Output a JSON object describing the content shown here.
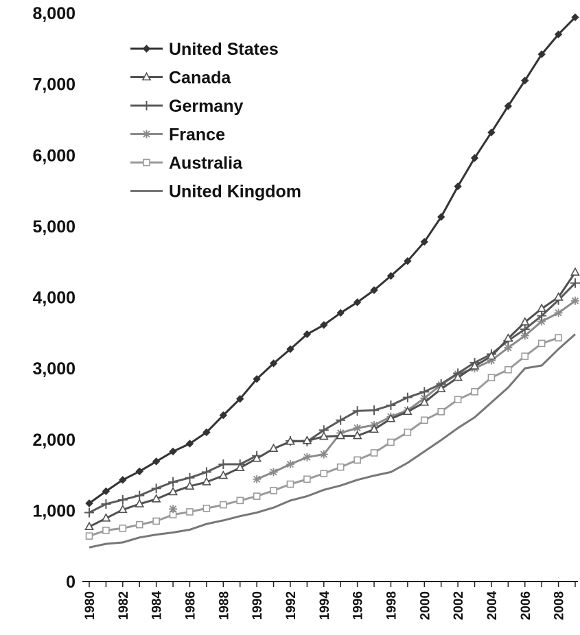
{
  "chart_data": {
    "type": "line",
    "title": "",
    "xlabel": "",
    "ylabel": "",
    "xlim": [
      1980,
      2009
    ],
    "ylim": [
      0,
      8000
    ],
    "grid": false,
    "legend_position": "top-left",
    "y_ticks": [
      {
        "value": 0,
        "label": "0"
      },
      {
        "value": 1000,
        "label": "1,000"
      },
      {
        "value": 2000,
        "label": "2,000"
      },
      {
        "value": 3000,
        "label": "3,000"
      },
      {
        "value": 4000,
        "label": "4,000"
      },
      {
        "value": 5000,
        "label": "5,000"
      },
      {
        "value": 6000,
        "label": "6,000"
      },
      {
        "value": 7000,
        "label": "7,000"
      },
      {
        "value": 8000,
        "label": "8,000"
      }
    ],
    "x_ticks": [
      {
        "value": 1980,
        "label": "1980"
      },
      {
        "value": 1982,
        "label": "1982"
      },
      {
        "value": 1984,
        "label": "1984"
      },
      {
        "value": 1986,
        "label": "1986"
      },
      {
        "value": 1988,
        "label": "1988"
      },
      {
        "value": 1990,
        "label": "1990"
      },
      {
        "value": 1992,
        "label": "1992"
      },
      {
        "value": 1994,
        "label": "1994"
      },
      {
        "value": 1996,
        "label": "1996"
      },
      {
        "value": 1998,
        "label": "1998"
      },
      {
        "value": 2000,
        "label": "2000"
      },
      {
        "value": 2002,
        "label": "2002"
      },
      {
        "value": 2004,
        "label": "2004"
      },
      {
        "value": 2006,
        "label": "2006"
      },
      {
        "value": 2008,
        "label": "2008"
      }
    ],
    "series": [
      {
        "name": "United States",
        "color": "#333333",
        "marker": "diamond",
        "points": [
          [
            1980,
            1100
          ],
          [
            1981,
            1270
          ],
          [
            1982,
            1430
          ],
          [
            1983,
            1550
          ],
          [
            1984,
            1690
          ],
          [
            1985,
            1830
          ],
          [
            1986,
            1940
          ],
          [
            1987,
            2100
          ],
          [
            1988,
            2340
          ],
          [
            1989,
            2570
          ],
          [
            1990,
            2850
          ],
          [
            1991,
            3070
          ],
          [
            1992,
            3270
          ],
          [
            1993,
            3480
          ],
          [
            1994,
            3610
          ],
          [
            1995,
            3780
          ],
          [
            1996,
            3930
          ],
          [
            1997,
            4100
          ],
          [
            1998,
            4300
          ],
          [
            1999,
            4510
          ],
          [
            2000,
            4780
          ],
          [
            2001,
            5130
          ],
          [
            2002,
            5560
          ],
          [
            2003,
            5960
          ],
          [
            2004,
            6320
          ],
          [
            2005,
            6690
          ],
          [
            2006,
            7050
          ],
          [
            2007,
            7420
          ],
          [
            2008,
            7700
          ],
          [
            2009,
            7940
          ]
        ]
      },
      {
        "name": "Canada",
        "color": "#505050",
        "marker": "triangle",
        "points": [
          [
            1980,
            770
          ],
          [
            1981,
            890
          ],
          [
            1982,
            1010
          ],
          [
            1983,
            1090
          ],
          [
            1984,
            1160
          ],
          [
            1985,
            1260
          ],
          [
            1986,
            1340
          ],
          [
            1987,
            1400
          ],
          [
            1988,
            1490
          ],
          [
            1989,
            1600
          ],
          [
            1990,
            1730
          ],
          [
            1991,
            1870
          ],
          [
            1992,
            1970
          ],
          [
            1993,
            1980
          ],
          [
            1994,
            2040
          ],
          [
            1995,
            2050
          ],
          [
            1996,
            2050
          ],
          [
            1997,
            2140
          ],
          [
            1998,
            2290
          ],
          [
            1999,
            2390
          ],
          [
            2000,
            2520
          ],
          [
            2001,
            2710
          ],
          [
            2002,
            2870
          ],
          [
            2003,
            3030
          ],
          [
            2004,
            3170
          ],
          [
            2005,
            3420
          ],
          [
            2006,
            3650
          ],
          [
            2007,
            3840
          ],
          [
            2008,
            4000
          ],
          [
            2009,
            4350
          ]
        ]
      },
      {
        "name": "Germany",
        "color": "#5a5a5a",
        "marker": "plus",
        "points": [
          [
            1980,
            970
          ],
          [
            1981,
            1090
          ],
          [
            1982,
            1150
          ],
          [
            1983,
            1210
          ],
          [
            1984,
            1310
          ],
          [
            1985,
            1400
          ],
          [
            1986,
            1460
          ],
          [
            1987,
            1540
          ],
          [
            1988,
            1650
          ],
          [
            1989,
            1650
          ],
          [
            1990,
            1770
          ],
          [
            1991,
            null
          ],
          [
            1992,
            1980
          ],
          [
            1993,
            1970
          ],
          [
            1994,
            2130
          ],
          [
            1995,
            2270
          ],
          [
            1996,
            2400
          ],
          [
            1997,
            2410
          ],
          [
            1998,
            2480
          ],
          [
            1999,
            2590
          ],
          [
            2000,
            2670
          ],
          [
            2001,
            2780
          ],
          [
            2002,
            2930
          ],
          [
            2003,
            3080
          ],
          [
            2004,
            3200
          ],
          [
            2005,
            3390
          ],
          [
            2006,
            3550
          ],
          [
            2007,
            3740
          ],
          [
            2008,
            3960
          ],
          [
            2009,
            4200
          ]
        ]
      },
      {
        "name": "France",
        "color": "#8a8a8a",
        "marker": "star",
        "points": [
          [
            1980,
            null
          ],
          [
            1981,
            null
          ],
          [
            1982,
            null
          ],
          [
            1983,
            null
          ],
          [
            1984,
            null
          ],
          [
            1985,
            1020
          ],
          [
            1986,
            null
          ],
          [
            1987,
            null
          ],
          [
            1988,
            null
          ],
          [
            1989,
            null
          ],
          [
            1990,
            1440
          ],
          [
            1991,
            1540
          ],
          [
            1992,
            1650
          ],
          [
            1993,
            1750
          ],
          [
            1994,
            1790
          ],
          [
            1995,
            2090
          ],
          [
            1996,
            2160
          ],
          [
            1997,
            2200
          ],
          [
            1998,
            2320
          ],
          [
            1999,
            2410
          ],
          [
            2000,
            2580
          ],
          [
            2001,
            2770
          ],
          [
            2002,
            2920
          ],
          [
            2003,
            3000
          ],
          [
            2004,
            3110
          ],
          [
            2005,
            3290
          ],
          [
            2006,
            3460
          ],
          [
            2007,
            3660
          ],
          [
            2008,
            3780
          ],
          [
            2009,
            3950
          ]
        ]
      },
      {
        "name": "Australia",
        "color": "#9a9a9a",
        "marker": "square",
        "points": [
          [
            1980,
            640
          ],
          [
            1981,
            720
          ],
          [
            1982,
            750
          ],
          [
            1983,
            800
          ],
          [
            1984,
            850
          ],
          [
            1985,
            940
          ],
          [
            1986,
            980
          ],
          [
            1987,
            1030
          ],
          [
            1988,
            1080
          ],
          [
            1989,
            1140
          ],
          [
            1990,
            1200
          ],
          [
            1991,
            1280
          ],
          [
            1992,
            1370
          ],
          [
            1993,
            1440
          ],
          [
            1994,
            1520
          ],
          [
            1995,
            1610
          ],
          [
            1996,
            1710
          ],
          [
            1997,
            1810
          ],
          [
            1998,
            1960
          ],
          [
            1999,
            2100
          ],
          [
            2000,
            2270
          ],
          [
            2001,
            2390
          ],
          [
            2002,
            2560
          ],
          [
            2003,
            2670
          ],
          [
            2004,
            2870
          ],
          [
            2005,
            2980
          ],
          [
            2006,
            3170
          ],
          [
            2007,
            3350
          ],
          [
            2008,
            3430
          ],
          [
            2009,
            null
          ]
        ]
      },
      {
        "name": "United Kingdom",
        "color": "#777777",
        "marker": "none",
        "points": [
          [
            1980,
            480
          ],
          [
            1981,
            530
          ],
          [
            1982,
            550
          ],
          [
            1983,
            620
          ],
          [
            1984,
            660
          ],
          [
            1985,
            690
          ],
          [
            1986,
            730
          ],
          [
            1987,
            810
          ],
          [
            1988,
            860
          ],
          [
            1989,
            920
          ],
          [
            1990,
            970
          ],
          [
            1991,
            1040
          ],
          [
            1992,
            1140
          ],
          [
            1993,
            1200
          ],
          [
            1994,
            1290
          ],
          [
            1995,
            1350
          ],
          [
            1996,
            1430
          ],
          [
            1997,
            1490
          ],
          [
            1998,
            1540
          ],
          [
            1999,
            1670
          ],
          [
            2000,
            1830
          ],
          [
            2001,
            1990
          ],
          [
            2002,
            2160
          ],
          [
            2003,
            2310
          ],
          [
            2004,
            2520
          ],
          [
            2005,
            2730
          ],
          [
            2006,
            3000
          ],
          [
            2007,
            3040
          ],
          [
            2008,
            3270
          ],
          [
            2009,
            3480
          ]
        ]
      }
    ]
  }
}
